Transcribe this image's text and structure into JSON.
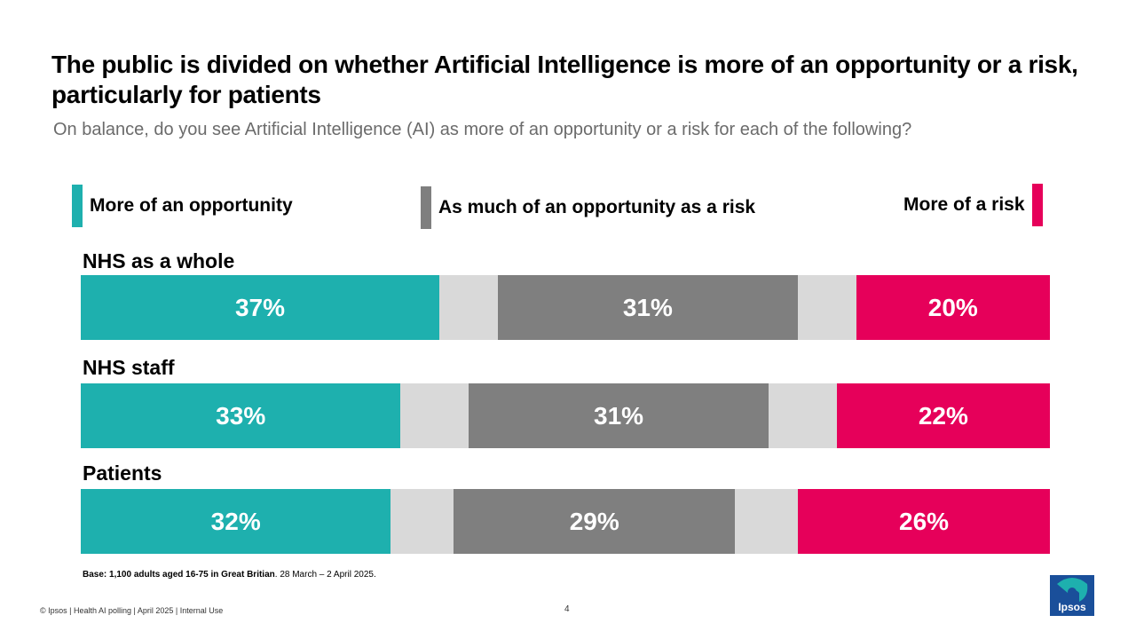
{
  "title": "The public is divided on whether Artificial Intelligence is more of an opportunity or a risk, particularly for patients",
  "subtitle": "On balance, do you see Artificial Intelligence (AI) as more of an opportunity or a risk for each of the following?",
  "colors": {
    "opportunity": "#1eb0ae",
    "both": "#7f7f7f",
    "risk": "#e6005a",
    "gap": "#d9d9d9"
  },
  "chart_data": {
    "type": "bar",
    "orientation": "horizontal-stacked",
    "title": "The public is divided on whether Artificial Intelligence is more of an opportunity or a risk, particularly for patients",
    "categories": [
      "NHS as a whole",
      "NHS staff",
      "Patients"
    ],
    "series": [
      {
        "name": "More of an opportunity",
        "values": [
          37,
          33,
          32
        ],
        "labels": [
          "37%",
          "33%",
          "32%"
        ]
      },
      {
        "name": "As much of an opportunity as a risk",
        "values": [
          31,
          31,
          29
        ],
        "labels": [
          "31%",
          "31%",
          "29%"
        ]
      },
      {
        "name": "More of a risk",
        "values": [
          20,
          22,
          26
        ],
        "labels": [
          "20%",
          "22%",
          "26%"
        ]
      }
    ],
    "gap_values": [
      12,
      14,
      13
    ],
    "legend": [
      "More of an opportunity",
      "As much of an opportunity as a risk",
      "More of a risk"
    ],
    "legend_position": "top"
  },
  "footnote": {
    "base_bold": "Base: 1,100 adults aged 16-75 in Great Britian",
    "rest": ". 28 March – 2 April 2025."
  },
  "footer": "© Ipsos | Health AI polling | April 2025 | Internal Use",
  "page_number": "4",
  "logo_text": "Ipsos"
}
